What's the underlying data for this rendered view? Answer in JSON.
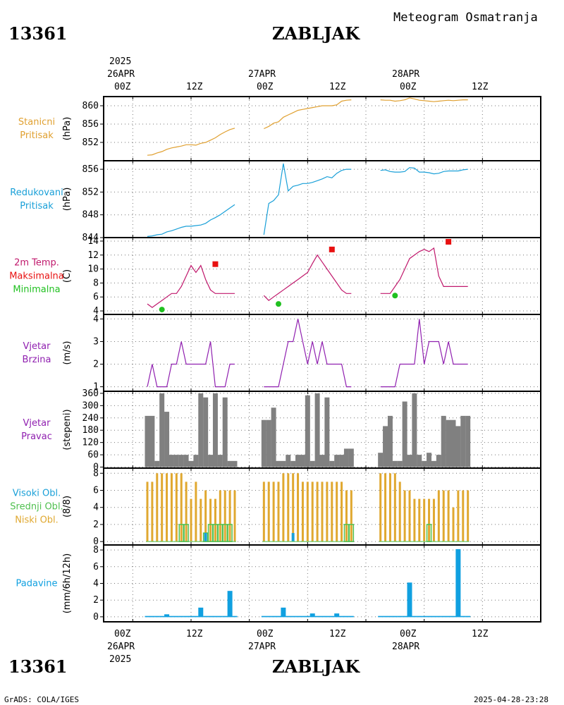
{
  "header": {
    "station_id": "13361",
    "station_name": "ZABLJAK",
    "subtitle": "Meteogram Osmatranja"
  },
  "footer": {
    "station_id": "13361",
    "station_name": "ZABLJAK",
    "credit": "GrADS: COLA/IGES",
    "timestamp": "2025-04-28-23:28"
  },
  "time_axis": {
    "top_year": "2025",
    "bottom_year": "2025",
    "hour_labels": [
      "00Z",
      "12Z",
      "00Z",
      "12Z",
      "00Z",
      "12Z"
    ],
    "date_labels": [
      "26APR",
      "27APR",
      "28APR"
    ],
    "x_range_hours": [
      -6,
      84
    ]
  },
  "colors": {
    "station_pressure": "#e0a030",
    "reduced_pressure": "#1aa0d8",
    "temperature": "#c0186c",
    "tmax": "#e81010",
    "tmin": "#20c020",
    "wind": "#9020b0",
    "direction_bars": "#808080",
    "high_clouds": "#1aa0d8",
    "mid_clouds": "#50c050",
    "low_clouds": "#e0a830",
    "precip": "#10a0e0"
  },
  "chart_data": [
    {
      "type": "line",
      "panel": "station_pressure",
      "label_lines": [
        "Stanicni",
        "Pritisak"
      ],
      "ylabel": "(hPa)",
      "ylim": [
        848,
        862
      ],
      "yticks": [
        852,
        856,
        860
      ],
      "series": [
        {
          "x": [
            3,
            4,
            5,
            6,
            7,
            8,
            9,
            10,
            11,
            12,
            13,
            14,
            15,
            16,
            17,
            18,
            19,
            20,
            21,
            27,
            28,
            29,
            30,
            31,
            32,
            33,
            34,
            35,
            36,
            37,
            38,
            39,
            40,
            41,
            42,
            43,
            44,
            45,
            51,
            52,
            53,
            54,
            55,
            56,
            57,
            58,
            59,
            60,
            61,
            62,
            63,
            64,
            65,
            66,
            67,
            68,
            69
          ],
          "values": [
            849.2,
            849.3,
            849.7,
            850,
            850.5,
            850.8,
            851,
            851.2,
            851.5,
            851.5,
            851.4,
            851.8,
            852,
            852.5,
            853,
            853.7,
            854.3,
            854.8,
            855.1,
            855,
            855.5,
            856.2,
            856.5,
            857.5,
            858,
            858.5,
            859,
            859.2,
            859.4,
            859.6,
            859.8,
            860,
            860,
            860,
            860.2,
            861,
            861.2,
            861.3,
            861.3,
            861.2,
            861.2,
            861,
            861.1,
            861.3,
            861.7,
            861.5,
            861.2,
            861.1,
            861.0,
            860.9,
            861,
            861.1,
            861.2,
            861.1,
            861.2,
            861.3,
            861.3
          ]
        }
      ]
    },
    {
      "type": "line",
      "panel": "reduced_pressure",
      "label_lines": [
        "Redukovani",
        "Pritisak"
      ],
      "ylabel": "(hPa)",
      "ylim": [
        844,
        857.5
      ],
      "yticks": [
        844,
        848,
        852,
        856
      ],
      "series": [
        {
          "x": [
            3,
            4,
            5,
            6,
            7,
            8,
            9,
            10,
            11,
            12,
            13,
            14,
            15,
            16,
            17,
            18,
            19,
            20,
            21,
            27,
            28,
            29,
            30,
            31,
            32,
            33,
            34,
            35,
            36,
            37,
            38,
            39,
            40,
            41,
            42,
            43,
            44,
            45,
            51,
            52,
            53,
            54,
            55,
            56,
            57,
            58,
            59,
            60,
            61,
            62,
            63,
            64,
            65,
            66,
            67,
            68,
            69
          ],
          "values": [
            844.2,
            844.3,
            844.5,
            844.6,
            845,
            845.2,
            845.5,
            845.8,
            846,
            846,
            846.1,
            846.2,
            846.5,
            847.1,
            847.5,
            848,
            848.6,
            849.2,
            849.8,
            844.5,
            850,
            850.5,
            851.5,
            857,
            852.2,
            853,
            853.2,
            853.5,
            853.5,
            853.7,
            854,
            854.3,
            854.7,
            854.5,
            855.3,
            855.8,
            856,
            856,
            855.8,
            855.9,
            855.6,
            855.5,
            855.5,
            855.6,
            856.3,
            856.2,
            855.5,
            855.5,
            855.4,
            855.2,
            855.3,
            855.6,
            855.7,
            855.7,
            855.7,
            855.9,
            856
          ]
        }
      ]
    },
    {
      "type": "line",
      "panel": "temperature",
      "label_lines": [
        "2m Temp.",
        "Maksimalna",
        "Minimalna"
      ],
      "ylabel": "(C)",
      "ylim": [
        3.5,
        14.5
      ],
      "yticks": [
        4,
        6,
        8,
        10,
        12,
        14
      ],
      "series": [
        {
          "x": [
            3,
            4,
            5,
            6,
            7,
            8,
            9,
            10,
            11,
            12,
            13,
            14,
            15,
            16,
            17,
            18,
            19,
            20,
            21,
            27,
            28,
            29,
            30,
            31,
            32,
            33,
            34,
            35,
            36,
            37,
            38,
            39,
            40,
            41,
            42,
            43,
            44,
            45,
            51,
            52,
            53,
            54,
            55,
            56,
            57,
            58,
            59,
            60,
            61,
            62,
            63,
            64,
            65,
            66,
            67,
            68,
            69
          ],
          "values": [
            5,
            4.5,
            5,
            5.5,
            6,
            6.5,
            6.5,
            7.5,
            9,
            10.5,
            9.5,
            10.5,
            8.5,
            7,
            6.5,
            6.5,
            6.5,
            6.5,
            6.5,
            6.2,
            5.5,
            6,
            6.5,
            7,
            7.5,
            8,
            8.5,
            9,
            9.5,
            10.8,
            12,
            11,
            10,
            9,
            8,
            7,
            6.5,
            6.5,
            6.5,
            6.5,
            6.5,
            7.5,
            8.5,
            10,
            11.5,
            12,
            12.5,
            12.8,
            12.5,
            13,
            9,
            7.5,
            7.5,
            7.5,
            7.5,
            7.5,
            7.5
          ]
        }
      ],
      "tmax_points": [
        {
          "x": 17,
          "value": 10.7
        },
        {
          "x": 41,
          "value": 12.8
        },
        {
          "x": 65,
          "value": 13.9
        }
      ],
      "tmin_points": [
        {
          "x": 6,
          "value": 4.2
        },
        {
          "x": 30,
          "value": 5
        },
        {
          "x": 54,
          "value": 6.2
        }
      ]
    },
    {
      "type": "line",
      "panel": "wind_speed",
      "label_lines": [
        "Vjetar",
        "Brzina"
      ],
      "ylabel": "(m/s)",
      "ylim": [
        0.8,
        4.2
      ],
      "yticks": [
        1,
        2,
        3,
        4
      ],
      "series": [
        {
          "x": [
            3,
            4,
            5,
            6,
            7,
            8,
            9,
            10,
            11,
            12,
            13,
            14,
            15,
            16,
            17,
            18,
            19,
            20,
            21,
            27,
            28,
            29,
            30,
            31,
            32,
            33,
            34,
            35,
            36,
            37,
            38,
            39,
            40,
            41,
            42,
            43,
            44,
            45,
            51,
            52,
            53,
            54,
            55,
            56,
            57,
            58,
            59,
            60,
            61,
            62,
            63,
            64,
            65,
            66,
            67,
            68,
            69
          ],
          "values": [
            1,
            2,
            1,
            1,
            1,
            2,
            2,
            3,
            2,
            2,
            2,
            2,
            2,
            3,
            1,
            1,
            1,
            2,
            2,
            1,
            1,
            1,
            1,
            2,
            3,
            3,
            4,
            3,
            2,
            3,
            2,
            3,
            2,
            2,
            2,
            2,
            1,
            1,
            1,
            1,
            1,
            1,
            2,
            2,
            2,
            2,
            4,
            2,
            3,
            3,
            3,
            2,
            3,
            2,
            2,
            2,
            2
          ]
        }
      ]
    },
    {
      "type": "bar",
      "panel": "wind_direction",
      "label_lines": [
        "Vjetar",
        "Pravac"
      ],
      "ylabel": "(stepeni)",
      "ylim": [
        -5,
        370
      ],
      "yticks": [
        0,
        60,
        120,
        180,
        240,
        300,
        360
      ],
      "tick_labels": [
        "0",
        "60",
        "120",
        "180",
        "240",
        "300",
        "360"
      ],
      "series": [
        {
          "x": [
            3,
            4,
            5,
            6,
            7,
            8,
            9,
            10,
            11,
            12,
            13,
            14,
            15,
            16,
            17,
            18,
            19,
            20,
            21,
            27,
            28,
            29,
            30,
            31,
            32,
            33,
            34,
            35,
            36,
            37,
            38,
            39,
            40,
            41,
            42,
            43,
            44,
            45,
            51,
            52,
            53,
            54,
            55,
            56,
            57,
            58,
            59,
            60,
            61,
            62,
            63,
            64,
            65,
            66,
            67,
            68,
            69
          ],
          "values": [
            250,
            250,
            30,
            360,
            270,
            60,
            60,
            60,
            60,
            30,
            60,
            360,
            340,
            60,
            360,
            60,
            340,
            30,
            30,
            230,
            230,
            290,
            30,
            30,
            60,
            30,
            60,
            60,
            350,
            30,
            360,
            60,
            340,
            30,
            60,
            60,
            90,
            90,
            70,
            200,
            250,
            30,
            30,
            320,
            60,
            360,
            60,
            30,
            70,
            30,
            60,
            250,
            230,
            230,
            200,
            250,
            250
          ]
        }
      ]
    },
    {
      "type": "bar",
      "panel": "clouds",
      "label_lines": [
        "Visoki Obl.",
        "Srednji Obl.",
        "Niski Obl."
      ],
      "ylabel": "(8/8)",
      "ylim": [
        -0.4,
        8.6
      ],
      "yticks": [
        0,
        2,
        4,
        6,
        8
      ],
      "series": [
        {
          "name": "Niski Obl.",
          "x": [
            3,
            4,
            5,
            6,
            7,
            8,
            9,
            10,
            11,
            12,
            13,
            14,
            15,
            16,
            17,
            18,
            19,
            20,
            21,
            27,
            28,
            29,
            30,
            31,
            32,
            33,
            34,
            35,
            36,
            37,
            38,
            39,
            40,
            41,
            42,
            43,
            44,
            45,
            51,
            52,
            53,
            54,
            55,
            56,
            57,
            58,
            59,
            60,
            61,
            62,
            63,
            64,
            65,
            66,
            67,
            68,
            69
          ],
          "values": [
            7,
            7,
            8,
            8,
            8,
            8,
            8,
            8,
            7,
            5,
            7,
            5,
            6,
            5,
            5,
            6,
            6,
            6,
            6,
            7,
            7,
            7,
            7,
            8,
            8,
            8,
            8,
            7,
            7,
            7,
            7,
            7,
            7,
            7,
            7,
            7,
            6,
            6,
            8,
            8,
            8,
            8,
            7,
            6,
            6,
            5,
            5,
            5,
            5,
            5,
            6,
            6,
            6,
            4,
            6,
            6,
            6
          ]
        },
        {
          "name": "Srednji Obl.",
          "x": [
            10,
            11,
            15,
            16,
            17,
            18,
            19,
            20,
            44,
            45,
            61
          ],
          "values": [
            2,
            2,
            1,
            2,
            2,
            2,
            2,
            2,
            2,
            2,
            2
          ]
        },
        {
          "name": "Visoki Obl.",
          "x": [
            15,
            33
          ],
          "values": [
            1,
            1
          ]
        }
      ]
    },
    {
      "type": "bar",
      "panel": "precipitation",
      "label_lines": [
        "Padavine"
      ],
      "ylabel": "(mm/6h/12h)",
      "ylim": [
        -0.6,
        8.6
      ],
      "yticks": [
        0,
        2,
        4,
        6,
        8
      ],
      "series": [
        {
          "x": [
            3,
            4,
            5,
            6,
            7,
            8,
            9,
            10,
            11,
            12,
            13,
            14,
            15,
            16,
            17,
            18,
            19,
            20,
            21,
            27,
            28,
            29,
            30,
            31,
            32,
            33,
            34,
            35,
            36,
            37,
            38,
            39,
            40,
            41,
            42,
            43,
            44,
            45,
            51,
            52,
            53,
            54,
            55,
            56,
            57,
            58,
            59,
            60,
            61,
            62,
            63,
            64,
            65,
            66,
            67,
            68,
            69
          ],
          "values": [
            0.1,
            0.1,
            0.1,
            0.1,
            0.3,
            0.1,
            0.1,
            0.1,
            0.1,
            0.1,
            0.1,
            1.1,
            0.1,
            0.1,
            0.1,
            0.1,
            0.1,
            3.1,
            0.1,
            0.1,
            0.1,
            0.1,
            0.1,
            1.1,
            0.1,
            0.1,
            0.1,
            0.1,
            0.1,
            0.4,
            0.1,
            0.1,
            0.1,
            0.1,
            0.4,
            0.1,
            0.1,
            0.1,
            0.1,
            0.1,
            0.1,
            0.1,
            0.1,
            0.1,
            4.1,
            0.1,
            0.1,
            0.1,
            0.1,
            0.1,
            0.1,
            0.1,
            0.1,
            0.1,
            8.1,
            0.1,
            0.1
          ]
        }
      ]
    }
  ]
}
